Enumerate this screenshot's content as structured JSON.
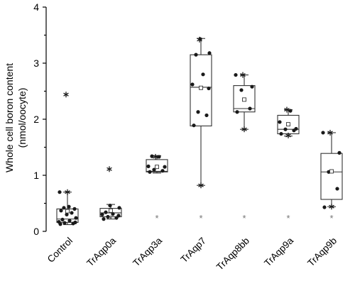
{
  "chart_data": {
    "type": "box",
    "title": "",
    "xlabel": "",
    "ylabel_line1": "Whole cell boron content",
    "ylabel_line2": "(nmol/oocyte)",
    "ylim": [
      0,
      4
    ],
    "yticks": [
      "0",
      "1",
      "2",
      "3",
      "4"
    ],
    "categories": [
      "Control",
      "TrAqp0a",
      "TrAqp3a",
      "TrAqp7",
      "TrAqp8bb",
      "TrAqp9a",
      "TrAqp9b"
    ],
    "boxes": [
      {
        "name": "Control",
        "q1": 0.16,
        "median": 0.22,
        "q3": 0.4,
        "whisker_low": 0.12,
        "whisker_high": 0.7,
        "mean": 0.36,
        "points": [
          0.13,
          0.14,
          0.15,
          0.16,
          0.17,
          0.19,
          0.21,
          0.24,
          0.3,
          0.33,
          0.37,
          0.4,
          0.42,
          0.44,
          0.7
        ],
        "outliers": [
          2.44,
          0.7
        ],
        "significance": ""
      },
      {
        "name": "TrAqp0a",
        "q1": 0.26,
        "median": 0.33,
        "q3": 0.41,
        "whisker_low": 0.22,
        "whisker_high": 0.48,
        "mean": 0.37,
        "points": [
          0.22,
          0.24,
          0.26,
          0.28,
          0.3,
          0.31,
          0.34,
          0.42,
          0.46
        ],
        "outliers": [
          1.11
        ],
        "significance": "*"
      },
      {
        "name": "TrAqp3a",
        "q1": 1.06,
        "median": 1.07,
        "q3": 1.28,
        "whisker_low": 1.04,
        "whisker_high": 1.35,
        "mean": 1.15,
        "points": [
          1.06,
          1.08,
          1.1,
          1.15,
          1.16,
          1.33,
          1.34
        ],
        "outliers": [
          1.33
        ],
        "significance": "*"
      },
      {
        "name": "TrAqp7",
        "q1": 1.88,
        "median": 2.57,
        "q3": 3.15,
        "whisker_low": 0.82,
        "whisker_high": 3.44,
        "mean": 2.56,
        "points": [
          1.89,
          2.07,
          2.13,
          2.55,
          2.62,
          2.8,
          3.15,
          3.18,
          3.43
        ],
        "outliers": [
          3.42,
          0.82
        ],
        "significance": "*"
      },
      {
        "name": "TrAqp8bb",
        "q1": 2.13,
        "median": 2.19,
        "q3": 2.6,
        "whisker_low": 1.82,
        "whisker_high": 2.79,
        "mean": 2.35,
        "points": [
          2.13,
          2.19,
          2.52,
          2.58,
          2.79
        ],
        "outliers": [
          2.79,
          1.82
        ],
        "significance": "*"
      },
      {
        "name": "TrAqp9a",
        "q1": 1.74,
        "median": 1.82,
        "q3": 2.07,
        "whisker_low": 1.7,
        "whisker_high": 2.17,
        "mean": 1.91,
        "points": [
          1.74,
          1.8,
          1.82,
          1.83,
          1.95,
          2.15
        ],
        "outliers": [
          2.17,
          1.71
        ],
        "significance": "*"
      },
      {
        "name": "TrAqp9b",
        "q1": 0.57,
        "median": 1.06,
        "q3": 1.39,
        "whisker_low": 0.44,
        "whisker_high": 1.76,
        "mean": 1.07,
        "points": [
          0.43,
          0.76,
          1.06,
          1.4,
          1.76
        ],
        "outliers": [
          1.76,
          0.44
        ],
        "significance": "*"
      }
    ]
  }
}
